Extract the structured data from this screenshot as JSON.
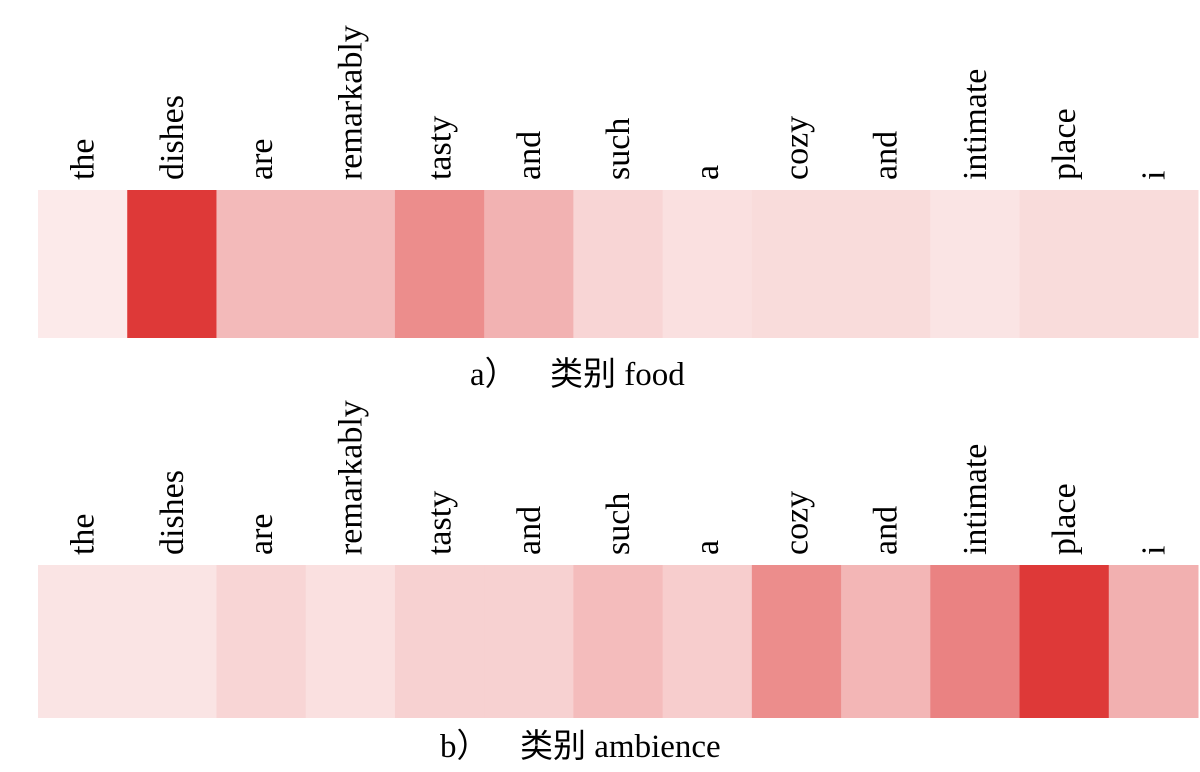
{
  "chart_data": [
    {
      "type": "heatmap",
      "caption": {
        "label": "a）",
        "text": "类别 food"
      },
      "tokens": [
        "the",
        "dishes",
        "are",
        "remarkably",
        "tasty",
        "and",
        "such",
        "a",
        "cozy",
        "and",
        "intimate",
        "place",
        "i"
      ],
      "values": [
        0.1,
        0.95,
        0.33,
        0.33,
        0.55,
        0.37,
        0.2,
        0.15,
        0.17,
        0.17,
        0.13,
        0.17,
        0.17
      ],
      "color_low": "#ffffff",
      "color_high": "#dc2f2e"
    },
    {
      "type": "heatmap",
      "caption": {
        "label": "b）",
        "text": "类别 ambience"
      },
      "tokens": [
        "the",
        "dishes",
        "are",
        "remarkably",
        "tasty",
        "and",
        "such",
        "a",
        "cozy",
        "and",
        "intimate",
        "place",
        "i"
      ],
      "values": [
        0.13,
        0.13,
        0.2,
        0.15,
        0.22,
        0.22,
        0.32,
        0.24,
        0.55,
        0.35,
        0.6,
        0.95,
        0.38
      ],
      "color_low": "#ffffff",
      "color_high": "#dc2f2e"
    }
  ]
}
